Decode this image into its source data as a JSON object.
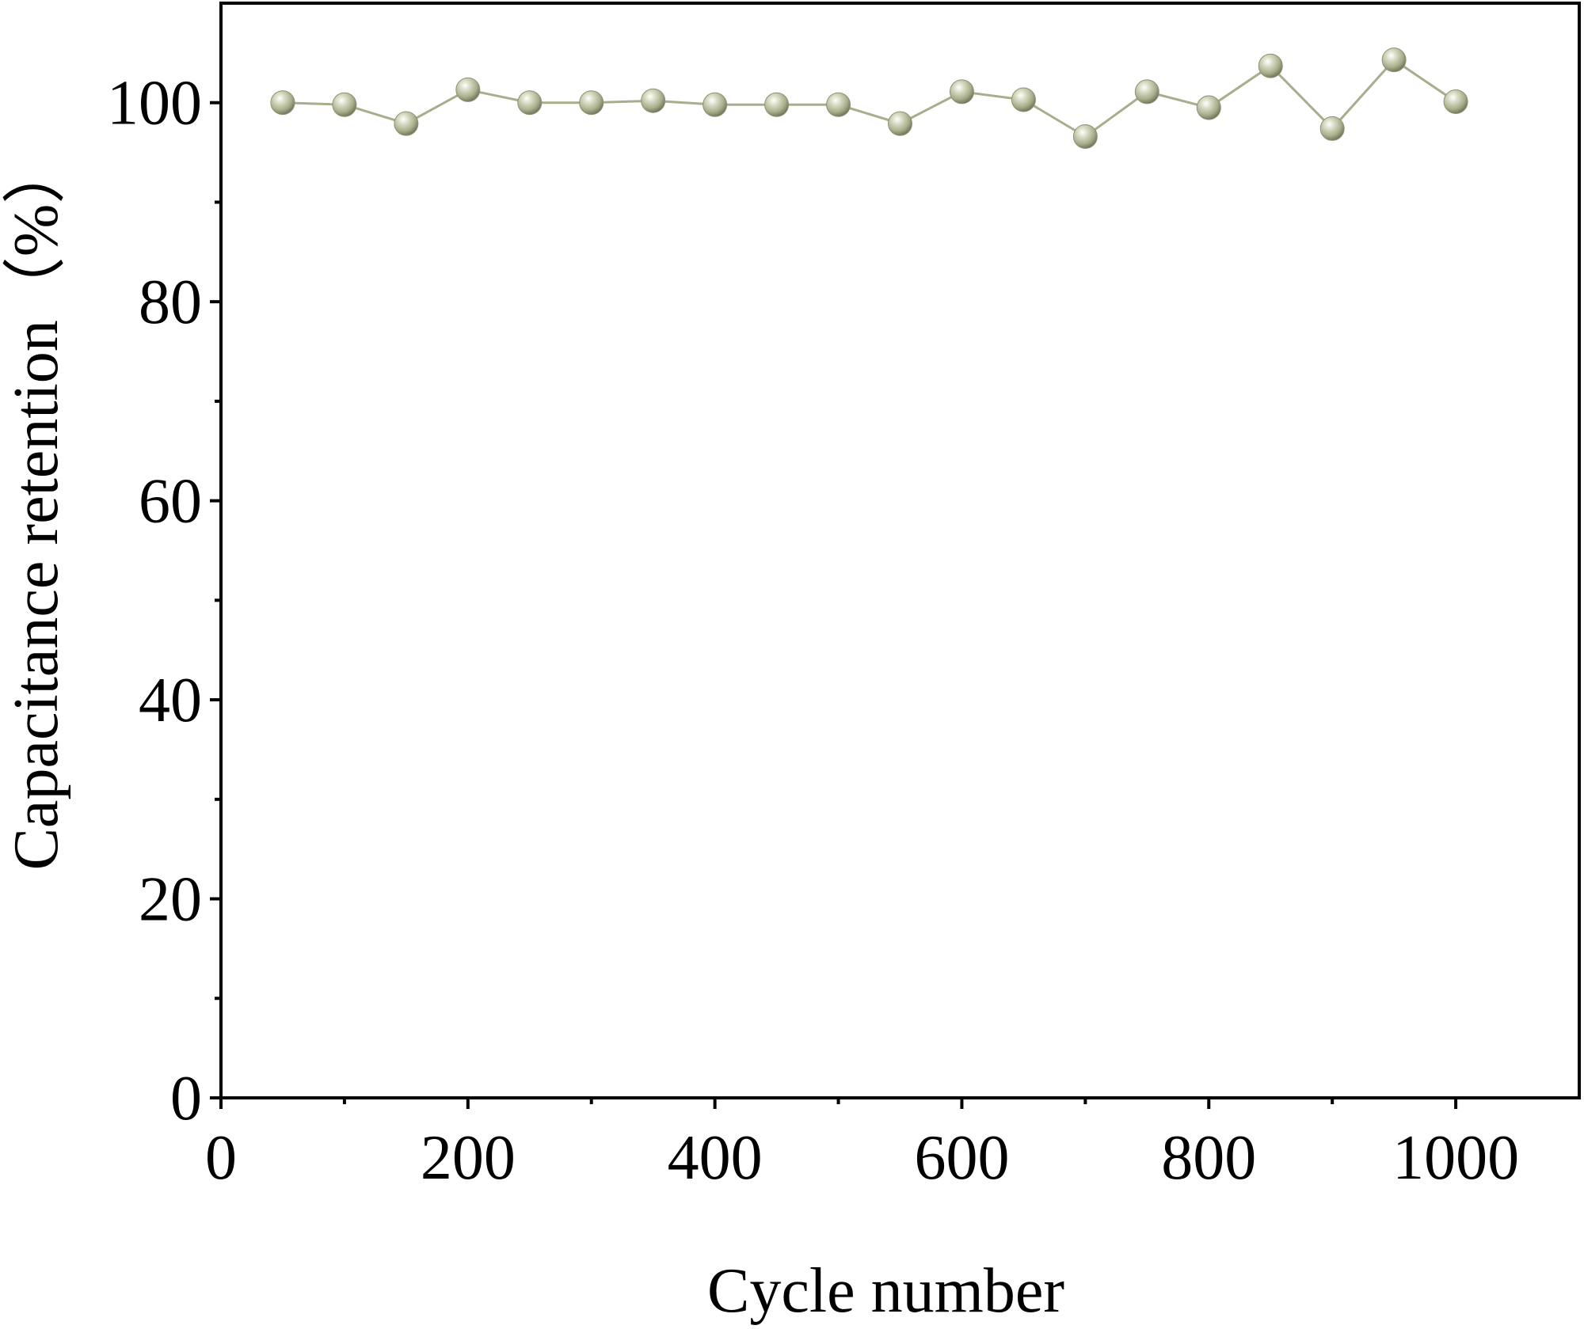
{
  "chart_data": {
    "type": "line",
    "title": "",
    "xlabel": "Cycle number",
    "ylabel": "Capacitance retention（%）",
    "xlim": [
      0,
      1100
    ],
    "ylim": [
      0,
      110
    ],
    "x_major_ticks": [
      0,
      200,
      400,
      600,
      800,
      1000
    ],
    "x_minor_ticks": [
      100,
      300,
      500,
      700,
      900
    ],
    "y_major_ticks": [
      0,
      20,
      40,
      60,
      80,
      100
    ],
    "y_minor_ticks": [
      10,
      30,
      50,
      70,
      90
    ],
    "x_tick_labels": [
      "0",
      "200",
      "400",
      "600",
      "800",
      "1000"
    ],
    "y_tick_labels": [
      "0",
      "20",
      "40",
      "60",
      "80",
      "100"
    ],
    "grid": false,
    "legend": "none",
    "series": [
      {
        "name": "Capacitance retention",
        "color": "#a8ad8c",
        "marker": "sphere",
        "x": [
          50,
          100,
          150,
          200,
          250,
          300,
          350,
          400,
          450,
          500,
          550,
          600,
          650,
          700,
          750,
          800,
          850,
          900,
          950,
          1000
        ],
        "y": [
          100.0,
          99.8,
          97.9,
          101.3,
          100.0,
          100.0,
          100.2,
          99.8,
          99.8,
          99.8,
          97.9,
          101.1,
          100.3,
          96.6,
          101.1,
          99.5,
          103.7,
          97.4,
          104.3,
          100.1
        ]
      }
    ]
  }
}
